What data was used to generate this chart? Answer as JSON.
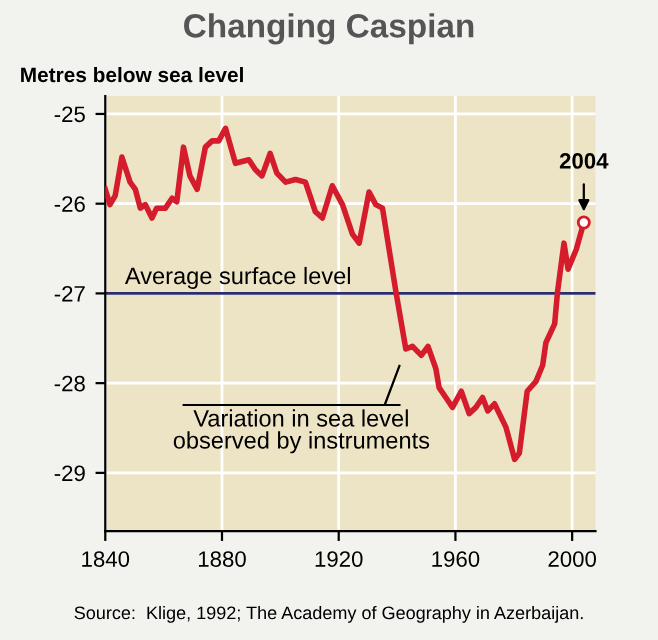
{
  "chart_data": {
    "type": "line",
    "title": "Changing Caspian",
    "ylabel": "Metres below sea level",
    "x": [
      1840,
      1841.6,
      1843.4,
      1845.7,
      1848.5,
      1850.3,
      1852,
      1853.7,
      1856,
      1857.6,
      1860.6,
      1862.9,
      1864.5,
      1866.8,
      1869,
      1871.5,
      1874.3,
      1876.6,
      1878.9,
      1881.2,
      1884.6,
      1889.2,
      1891.4,
      1893.7,
      1896.5,
      1898.8,
      1901.8,
      1905.2,
      1908.6,
      1912,
      1914.4,
      1917.8,
      1921.3,
      1924.7,
      1927,
      1930.4,
      1932.7,
      1935,
      1939.6,
      1943,
      1945.3,
      1948.3,
      1950.6,
      1953.3,
      1954.4,
      1956.7,
      1959,
      1962,
      1964.7,
      1967,
      1969.3,
      1971.1,
      1973.4,
      1977.3,
      1980.3,
      1981.9,
      1984.6,
      1987.6,
      1989.9,
      1991,
      1994,
      1995,
      1997.2,
      1998.6,
      2001.4,
      2004
    ],
    "series": [
      {
        "color": "#d41c2c",
        "values": [
          -25.84,
          -26.01,
          -25.91,
          -25.48,
          -25.76,
          -25.84,
          -26.05,
          -26.01,
          -26.16,
          -26.05,
          -26.05,
          -25.94,
          -25.98,
          -25.37,
          -25.69,
          -25.84,
          -25.37,
          -25.3,
          -25.3,
          -25.16,
          -25.55,
          -25.51,
          -25.62,
          -25.69,
          -25.44,
          -25.66,
          -25.76,
          -25.73,
          -25.76,
          -26.09,
          -26.16,
          -25.8,
          -26.01,
          -26.34,
          -26.44,
          -25.87,
          -26.01,
          -26.05,
          -26.98,
          -27.62,
          -27.59,
          -27.69,
          -27.59,
          -27.84,
          -28.05,
          -28.16,
          -28.27,
          -28.09,
          -28.34,
          -28.27,
          -28.16,
          -28.31,
          -28.23,
          -28.49,
          -28.85,
          -28.78,
          -28.09,
          -27.98,
          -27.8,
          -27.55,
          -27.34,
          -26.98,
          -26.44,
          -26.73,
          -26.51,
          -26.21
        ]
      }
    ],
    "xlim": [
      1840,
      2008
    ],
    "xticks": [
      1840,
      1880,
      1920,
      1960,
      2000
    ],
    "ylim": [
      -29.65,
      -24.8
    ],
    "yticks": [
      -25,
      -26,
      -27,
      -28,
      -29
    ],
    "grid": true,
    "ref_lines": [
      {
        "axis": "y",
        "value": -27,
        "label": "Average surface level",
        "color": "#2a2d6e"
      }
    ],
    "annotations": [
      {
        "text": "2004",
        "x": 2004,
        "y": -26.21
      },
      "Variation in sea level\nobserved by instruments",
      "Source:  Klige, 1992; The Academy of Geography in Azerbaijan."
    ]
  }
}
